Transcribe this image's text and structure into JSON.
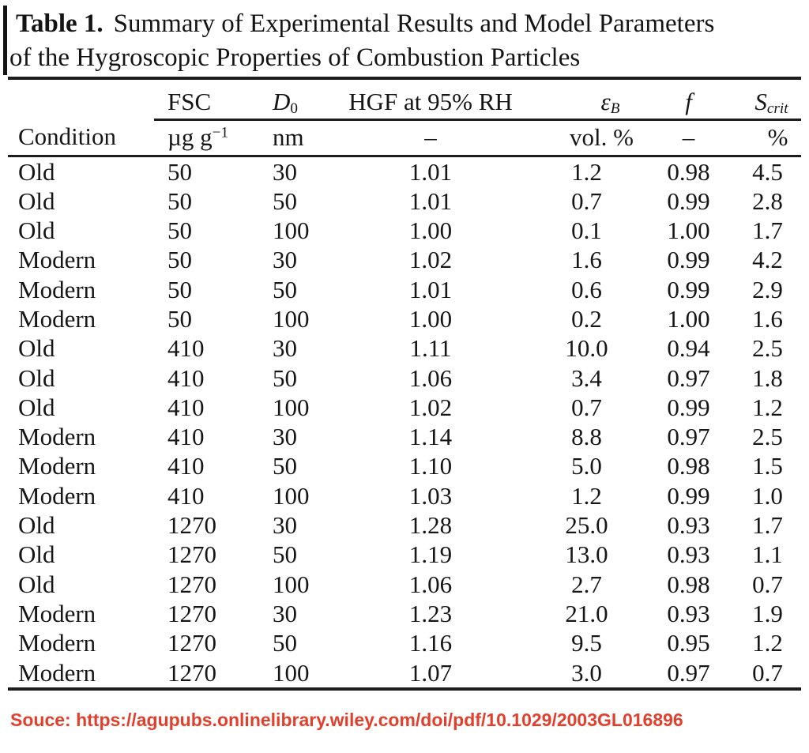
{
  "title": {
    "label": "Table 1.",
    "line1": "Summary of Experimental Results and Model Parameters",
    "line2": "of the Hygroscopic Properties of Combustion Particles"
  },
  "table": {
    "header": {
      "condition_top": "",
      "fsc": "FSC",
      "d_main": "D",
      "d_sub": "0",
      "hgf": "HGF at 95% RH",
      "eps_main": "ε",
      "eps_sub": "B",
      "f": "f",
      "s_main": "S",
      "s_sub": "crit"
    },
    "units": {
      "condition": "Condition",
      "fsc_main": "µg g",
      "fsc_sup": "−1",
      "d0": "nm",
      "hgf": "–",
      "eps": "vol. %",
      "f": "–",
      "scrit": "%"
    },
    "rows": [
      [
        "Old",
        "50",
        "30",
        "1.01",
        "1.2",
        "0.98",
        "4.5"
      ],
      [
        "Old",
        "50",
        "50",
        "1.01",
        "0.7",
        "0.99",
        "2.8"
      ],
      [
        "Old",
        "50",
        "100",
        "1.00",
        "0.1",
        "1.00",
        "1.7"
      ],
      [
        "Modern",
        "50",
        "30",
        "1.02",
        "1.6",
        "0.99",
        "4.2"
      ],
      [
        "Modern",
        "50",
        "50",
        "1.01",
        "0.6",
        "0.99",
        "2.9"
      ],
      [
        "Modern",
        "50",
        "100",
        "1.00",
        "0.2",
        "1.00",
        "1.6"
      ],
      [
        "Old",
        "410",
        "30",
        "1.11",
        "10.0",
        "0.94",
        "2.5"
      ],
      [
        "Old",
        "410",
        "50",
        "1.06",
        "3.4",
        "0.97",
        "1.8"
      ],
      [
        "Old",
        "410",
        "100",
        "1.02",
        "0.7",
        "0.99",
        "1.2"
      ],
      [
        "Modern",
        "410",
        "30",
        "1.14",
        "8.8",
        "0.97",
        "2.5"
      ],
      [
        "Modern",
        "410",
        "50",
        "1.10",
        "5.0",
        "0.98",
        "1.5"
      ],
      [
        "Modern",
        "410",
        "100",
        "1.03",
        "1.2",
        "0.99",
        "1.0"
      ],
      [
        "Old",
        "1270",
        "30",
        "1.28",
        "25.0",
        "0.93",
        "1.7"
      ],
      [
        "Old",
        "1270",
        "50",
        "1.19",
        "13.0",
        "0.93",
        "1.1"
      ],
      [
        "Old",
        "1270",
        "100",
        "1.06",
        "2.7",
        "0.98",
        "0.7"
      ],
      [
        "Modern",
        "1270",
        "30",
        "1.23",
        "21.0",
        "0.93",
        "1.9"
      ],
      [
        "Modern",
        "1270",
        "50",
        "1.16",
        "9.5",
        "0.95",
        "1.2"
      ],
      [
        "Modern",
        "1270",
        "100",
        "1.07",
        "3.0",
        "0.97",
        "0.7"
      ]
    ]
  },
  "source": {
    "label": "Souce:",
    "url": "https://agupubs.onlinelibrary.wiley.com/doi/pdf/10.1029/2003GL016896"
  },
  "colors": {
    "source_text": "#e2402c",
    "rule": "#1c1c1c",
    "background": "#ffffff"
  }
}
